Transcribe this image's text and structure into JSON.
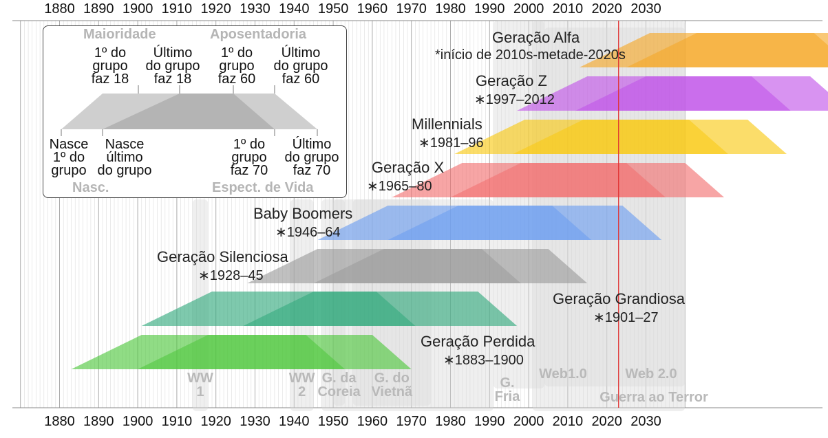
{
  "chart_data": {
    "type": "timeline",
    "x_range": [
      1870,
      2040
    ],
    "x_ticks": [
      1880,
      1890,
      1900,
      1910,
      1920,
      1930,
      1940,
      1950,
      1960,
      1970,
      1980,
      1990,
      2000,
      2010,
      2020,
      2030
    ],
    "x_tick_labels": [
      "1880",
      "1890",
      "1900",
      "1910",
      "1920",
      "1930",
      "1940",
      "1950",
      "1960",
      "1970",
      "1980",
      "1990",
      "2000",
      "2010",
      "2020",
      "2030"
    ],
    "current_year_marker": 2023,
    "events": [
      {
        "label": "WW\n1",
        "start": 1914,
        "end": 1918
      },
      {
        "label": "WW\n2",
        "start": 1939,
        "end": 1945
      },
      {
        "label": "G. da\nCoreia",
        "start": 1950,
        "end": 1953
      },
      {
        "label": "G. do\nVietnã",
        "start": 1955,
        "end": 1975
      },
      {
        "label": "G.\nFria",
        "start": 1947,
        "end": 1991
      },
      {
        "label": "Web1.0",
        "start": 1991,
        "end": 2004
      },
      {
        "label": "Web 2.0",
        "start": 2004,
        "end": 2040
      },
      {
        "label": "Guerra ao Terror",
        "start": 2001,
        "end": 2040
      }
    ],
    "generations": [
      {
        "name": "Geração Alfa",
        "years": "*início de 2010s-metade-2020s",
        "birth_start": 2013,
        "birth_end": 2025,
        "color": "#f5a623"
      },
      {
        "name": "Geração Z",
        "years": "1997–2012",
        "birth_start": 1997,
        "birth_end": 2012,
        "color": "#c050e8"
      },
      {
        "name": "Millennials",
        "years": "1981–96",
        "birth_start": 1981,
        "birth_end": 1996,
        "color": "#f9c80e"
      },
      {
        "name": "Geração X",
        "years": "1965–80",
        "birth_start": 1965,
        "birth_end": 1980,
        "color": "#f26d6d"
      },
      {
        "name": "Baby Boomers",
        "years": "1946–64",
        "birth_start": 1946,
        "birth_end": 1964,
        "color": "#6a9cf0"
      },
      {
        "name": "Geração Silenciosa",
        "years": "1928–45",
        "birth_start": 1928,
        "birth_end": 1945,
        "color": "#9a9a9a"
      },
      {
        "name": "Geração Grandiosa",
        "years": "1901–27",
        "birth_start": 1901,
        "birth_end": 1927,
        "color": "#2ea87a"
      },
      {
        "name": "Geração Perdida",
        "years": "1883–1900",
        "birth_start": 1883,
        "birth_end": 1900,
        "color": "#4cc63a"
      }
    ]
  },
  "legend": {
    "majority": "Maioridade",
    "retirement": "Aposentadoria",
    "first_18": "1º do\ngrupo\nfaz 18",
    "last_18": "Último\ndo grupo\nfaz 18",
    "first_60": "1º do\ngrupo\nfaz 60",
    "last_60": "Último\ndo grupo\nfaz 60",
    "born_first": "Nasce\n1º do\ngrupo",
    "born_last": "Nasce\núltimo\ndo grupo",
    "first_70": "1º do\ngrupo\nfaz 70",
    "last_70": "Último\ndo grupo\nfaz 70",
    "birth": "Nasc.",
    "life_expectancy": "Espect. de Vida"
  },
  "colors": {
    "grid": "#dddddd",
    "decade_line": "#aaaaaa",
    "current_year_line": "#e03030",
    "event_band": "#d9d9d9",
    "event_text": "#b9b9b9"
  }
}
